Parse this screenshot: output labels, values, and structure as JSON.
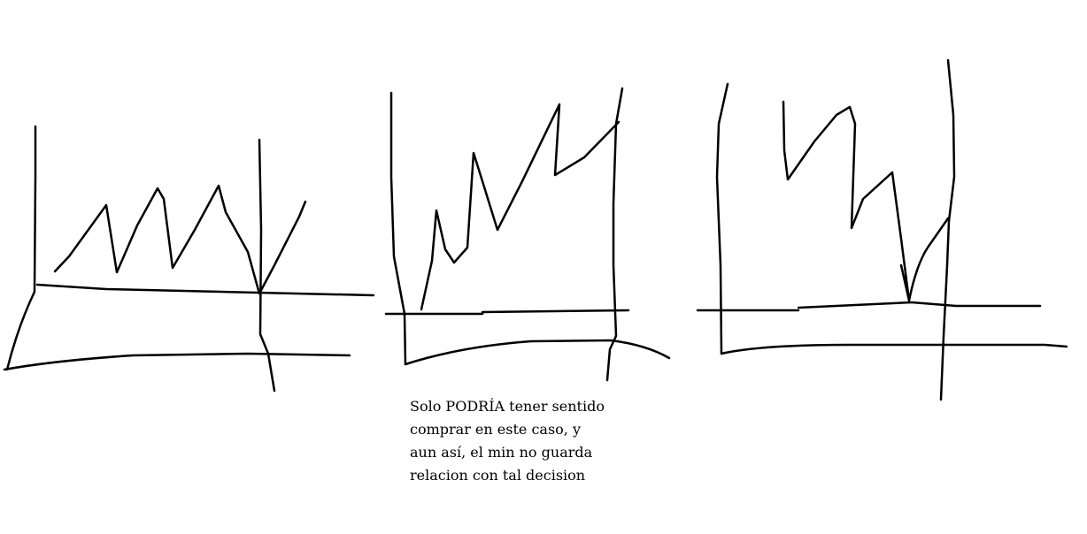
{
  "note": {
    "lines": [
      "Solo PODRÍA tener sentido",
      "comprar en este caso, y",
      "aun así, el min no guarda",
      "relacion con tal decision"
    ]
  }
}
